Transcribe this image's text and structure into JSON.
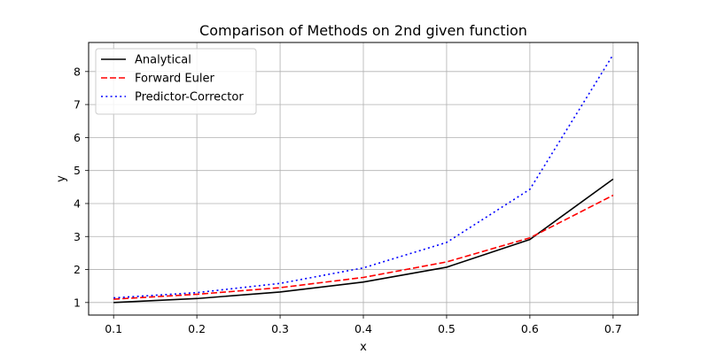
{
  "chart_data": {
    "type": "line",
    "title": "Comparison of Methods on 2nd given function",
    "xlabel": "x",
    "ylabel": "y",
    "x": [
      0.1,
      0.2,
      0.3,
      0.4,
      0.5,
      0.6,
      0.7
    ],
    "xlim": [
      0.07,
      0.73
    ],
    "ylim": [
      0.62,
      8.88
    ],
    "xticks": [
      "0.1",
      "0.2",
      "0.3",
      "0.4",
      "0.5",
      "0.6",
      "0.7"
    ],
    "yticks": [
      "1",
      "2",
      "3",
      "4",
      "5",
      "6",
      "7",
      "8"
    ],
    "grid": true,
    "legend_position": "top-left",
    "series": [
      {
        "name": "Analytical",
        "color": "#000000",
        "style": "solid",
        "values": [
          1.0,
          1.12,
          1.32,
          1.62,
          2.07,
          2.91,
          4.74
        ]
      },
      {
        "name": "Forward Euler",
        "color": "#ff0000",
        "style": "dashed",
        "values": [
          1.1,
          1.25,
          1.45,
          1.76,
          2.23,
          2.96,
          4.25
        ]
      },
      {
        "name": "Predictor-Corrector",
        "color": "#0000ff",
        "style": "dotted",
        "values": [
          1.14,
          1.3,
          1.58,
          2.05,
          2.82,
          4.43,
          8.51
        ]
      }
    ]
  }
}
